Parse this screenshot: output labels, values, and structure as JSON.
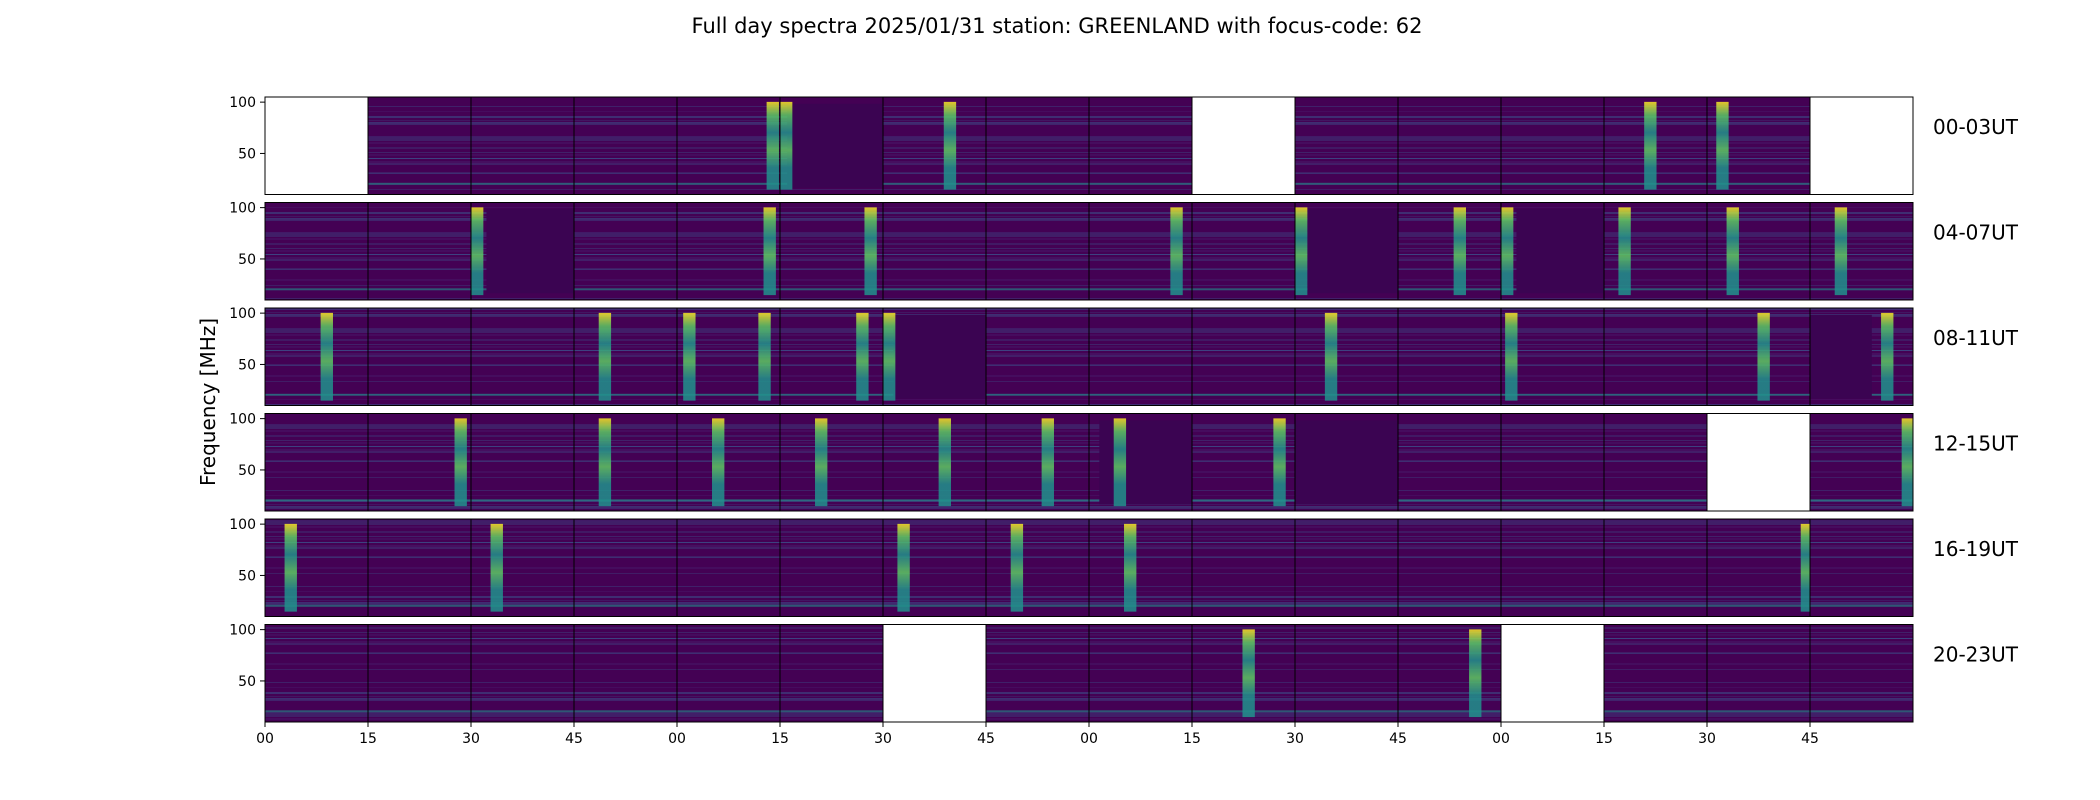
{
  "figure": {
    "title": "Full day spectra 2025/01/31 station: GREENLAND with focus-code: 62",
    "ylabel": "Frequency [MHz]"
  },
  "chart_data": {
    "type": "heatmap",
    "title": "Full day spectra 2025/01/31 station: GREENLAND with focus-code: 62",
    "ylabel": "Frequency [MHz]",
    "xlabel": "",
    "colormap": "viridis",
    "ylim": [
      10,
      105
    ],
    "y_ticks": [
      50,
      100
    ],
    "x_ticks": [
      "00",
      "15",
      "30",
      "45",
      "00",
      "15",
      "30",
      "45",
      "00",
      "15",
      "30",
      "45",
      "00",
      "15",
      "30",
      "45"
    ],
    "colors": {
      "background": "#440154",
      "low": "#471a6a",
      "mid": "#3b528b",
      "teal": "#21918c",
      "green": "#5ec962",
      "yellow": "#fde725",
      "dark_block": "#3b0452"
    },
    "rows": [
      {
        "label": "00-03UT",
        "panels": [
          {
            "missing": true
          },
          {
            "missing": false,
            "bursts": []
          },
          {
            "missing": false,
            "bursts": []
          },
          {
            "missing": false,
            "bursts": []
          },
          {
            "missing": false,
            "bursts": [
              0.93
            ]
          },
          {
            "missing": false,
            "dark_block": [
              0.07,
              1.0
            ],
            "bursts": [
              0.05
            ]
          },
          {
            "missing": false,
            "bursts": [
              0.65
            ]
          },
          {
            "missing": false,
            "bursts": []
          },
          {
            "missing": false,
            "bursts": []
          },
          {
            "missing": true
          },
          {
            "missing": false,
            "bursts": []
          },
          {
            "missing": false,
            "bursts": []
          },
          {
            "missing": false,
            "bursts": []
          },
          {
            "missing": false,
            "bursts": [
              0.45
            ]
          },
          {
            "missing": false,
            "bursts": [
              0.15
            ]
          },
          {
            "missing": true
          }
        ]
      },
      {
        "label": "04-07UT",
        "panels": [
          {
            "missing": false,
            "bursts": []
          },
          {
            "missing": false,
            "bursts": []
          },
          {
            "missing": false,
            "dark_block": [
              0.15,
              1.0
            ],
            "bursts": [
              0.05
            ]
          },
          {
            "missing": false,
            "bursts": []
          },
          {
            "missing": false,
            "bursts": [
              0.9
            ]
          },
          {
            "missing": false,
            "bursts": [
              0.88
            ]
          },
          {
            "missing": false,
            "bursts": []
          },
          {
            "missing": false,
            "bursts": []
          },
          {
            "missing": false,
            "bursts": [
              0.85
            ]
          },
          {
            "missing": false,
            "bursts": []
          },
          {
            "missing": false,
            "dark_block": [
              0.12,
              1.0
            ],
            "bursts": [
              0.05
            ]
          },
          {
            "missing": false,
            "bursts": [
              0.6
            ]
          },
          {
            "missing": false,
            "dark_block": [
              0.15,
              1.0
            ],
            "bursts": [
              0.05
            ]
          },
          {
            "missing": false,
            "bursts": [
              0.2
            ]
          },
          {
            "missing": false,
            "bursts": [
              0.25
            ]
          },
          {
            "missing": false,
            "bursts": [
              0.3
            ]
          }
        ]
      },
      {
        "label": "08-11UT",
        "panels": [
          {
            "missing": false,
            "bursts": [
              0.6
            ]
          },
          {
            "missing": false,
            "bursts": []
          },
          {
            "missing": false,
            "bursts": []
          },
          {
            "missing": false,
            "bursts": [
              0.3
            ]
          },
          {
            "missing": false,
            "bursts": [
              0.12,
              0.85
            ]
          },
          {
            "missing": false,
            "bursts": [
              0.8
            ]
          },
          {
            "missing": false,
            "dark_block": [
              0.1,
              1.0
            ],
            "bursts": [
              0.03
            ]
          },
          {
            "missing": false,
            "bursts": []
          },
          {
            "missing": false,
            "bursts": []
          },
          {
            "missing": false,
            "bursts": []
          },
          {
            "missing": false,
            "bursts": [
              0.35
            ]
          },
          {
            "missing": false,
            "bursts": []
          },
          {
            "missing": false,
            "bursts": [
              0.1
            ]
          },
          {
            "missing": false,
            "bursts": []
          },
          {
            "missing": false,
            "bursts": [
              0.55
            ]
          },
          {
            "missing": false,
            "dark_block": [
              0.0,
              0.6
            ],
            "bursts": [
              0.75
            ]
          }
        ]
      },
      {
        "label": "12-15UT",
        "panels": [
          {
            "missing": false,
            "bursts": []
          },
          {
            "missing": false,
            "bursts": [
              0.9
            ]
          },
          {
            "missing": false,
            "bursts": []
          },
          {
            "missing": false,
            "bursts": [
              0.3
            ]
          },
          {
            "missing": false,
            "bursts": [
              0.4
            ]
          },
          {
            "missing": false,
            "bursts": [
              0.4
            ]
          },
          {
            "missing": false,
            "bursts": [
              0.6
            ]
          },
          {
            "missing": false,
            "bursts": [
              0.6
            ]
          },
          {
            "missing": false,
            "dark_block": [
              0.1,
              1.0
            ],
            "bursts": [
              0.3
            ]
          },
          {
            "missing": false,
            "bursts": [
              0.85
            ]
          },
          {
            "missing": false,
            "dark_block": [
              0.0,
              1.0
            ],
            "bursts": []
          },
          {
            "missing": false,
            "bursts": []
          },
          {
            "missing": false,
            "bursts": []
          },
          {
            "missing": false,
            "bursts": []
          },
          {
            "missing": true
          },
          {
            "missing": false,
            "bursts": [
              0.95
            ]
          }
        ]
      },
      {
        "label": "16-19UT",
        "panels": [
          {
            "missing": false,
            "bursts": [
              0.25
            ]
          },
          {
            "missing": false,
            "bursts": []
          },
          {
            "missing": false,
            "bursts": [
              0.25
            ]
          },
          {
            "missing": false,
            "bursts": []
          },
          {
            "missing": false,
            "bursts": []
          },
          {
            "missing": false,
            "bursts": []
          },
          {
            "missing": false,
            "bursts": [
              0.2
            ]
          },
          {
            "missing": false,
            "bursts": [
              0.3
            ]
          },
          {
            "missing": false,
            "bursts": [
              0.4
            ]
          },
          {
            "missing": false,
            "bursts": []
          },
          {
            "missing": false,
            "bursts": []
          },
          {
            "missing": false,
            "bursts": []
          },
          {
            "missing": false,
            "bursts": []
          },
          {
            "missing": false,
            "bursts": []
          },
          {
            "missing": false,
            "bursts": [
              0.97
            ]
          },
          {
            "missing": false,
            "bursts": []
          }
        ]
      },
      {
        "label": "20-23UT",
        "panels": [
          {
            "missing": false,
            "bursts": []
          },
          {
            "missing": false,
            "bursts": []
          },
          {
            "missing": false,
            "bursts": []
          },
          {
            "missing": false,
            "bursts": []
          },
          {
            "missing": false,
            "bursts": []
          },
          {
            "missing": false,
            "bursts": []
          },
          {
            "missing": true
          },
          {
            "missing": false,
            "bursts": []
          },
          {
            "missing": false,
            "bursts": []
          },
          {
            "missing": false,
            "bursts": [
              0.55
            ]
          },
          {
            "missing": false,
            "bursts": []
          },
          {
            "missing": false,
            "bursts": [
              0.75
            ]
          },
          {
            "missing": true
          },
          {
            "missing": false,
            "bursts": []
          },
          {
            "missing": false,
            "bursts": []
          },
          {
            "missing": false,
            "bursts": []
          }
        ]
      }
    ]
  }
}
